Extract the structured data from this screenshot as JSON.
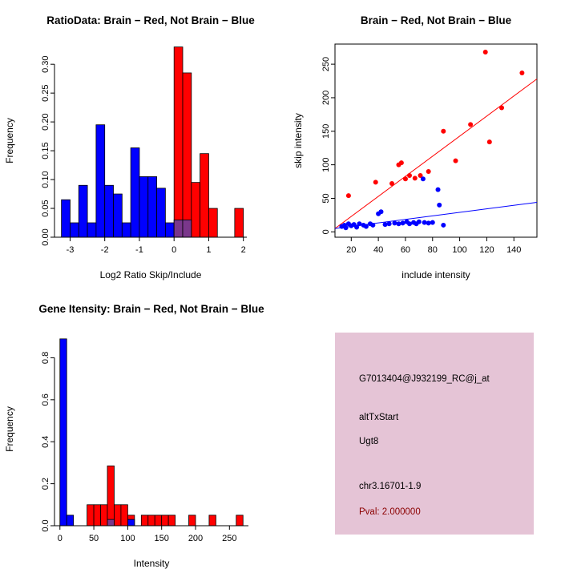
{
  "page": {
    "background": "#FFFFFF"
  },
  "chart_data": [
    {
      "id": "ratio-hist",
      "type": "bar",
      "title": "RatioData: Brain − Red, Not Brain − Blue",
      "xlabel": "Log2 Ratio Skip/Include",
      "ylabel": "Frequency",
      "xlim": [
        -3.45,
        2.1
      ],
      "ylim": [
        0,
        0.335
      ],
      "xticks": [
        -3,
        -2,
        -1,
        0,
        1,
        2
      ],
      "xtick_labels": [
        "-3",
        "-2",
        "-1",
        "0",
        "1",
        "2"
      ],
      "yticks": [
        0,
        0.05,
        0.1,
        0.15,
        0.2,
        0.25,
        0.3
      ],
      "ytick_labels": [
        "0.00",
        "0.05",
        "0.10",
        "0.15",
        "0.20",
        "0.25",
        "0.30"
      ],
      "bin_width": 0.25,
      "margin": {
        "l": 68,
        "r": 52,
        "t": 55,
        "b": 64
      },
      "grid": false,
      "legend": "none (color meaning in title)",
      "series": [
        {
          "name": "not-brain-blue",
          "color": "#0000FF",
          "bins": [
            [
              -3.25,
              0.065
            ],
            [
              -3.0,
              0.025
            ],
            [
              -2.75,
              0.09
            ],
            [
              -2.5,
              0.025
            ],
            [
              -2.25,
              0.195
            ],
            [
              -2.0,
              0.09
            ],
            [
              -1.75,
              0.075
            ],
            [
              -1.5,
              0.025
            ],
            [
              -1.25,
              0.155
            ],
            [
              -1.0,
              0.105
            ],
            [
              -0.75,
              0.105
            ],
            [
              -0.5,
              0.085
            ],
            [
              -0.25,
              0.025
            ]
          ]
        },
        {
          "name": "brain-red",
          "color": "#FF0000",
          "bins": [
            [
              0.0,
              0.33
            ],
            [
              0.25,
              0.285
            ],
            [
              0.5,
              0.095
            ],
            [
              0.75,
              0.145
            ],
            [
              1.0,
              0.05
            ],
            [
              1.75,
              0.05
            ]
          ]
        },
        {
          "name": "overlap-purple",
          "color": "#7A378B",
          "bins": [
            [
              0.0,
              0.03
            ],
            [
              0.25,
              0.03
            ]
          ]
        }
      ]
    },
    {
      "id": "intensity-scatter",
      "type": "scatter",
      "title": "Brain − Red, Not Brain − Blue",
      "xlabel": "include intensity",
      "ylabel": "skip intensity",
      "xlim": [
        8,
        157
      ],
      "ylim": [
        -8,
        280
      ],
      "xticks": [
        20,
        40,
        60,
        80,
        100,
        120,
        140
      ],
      "xtick_labels": [
        "20",
        "40",
        "60",
        "80",
        "100",
        "120",
        "140"
      ],
      "yticks": [
        0,
        50,
        100,
        150,
        200,
        250
      ],
      "ytick_labels": [
        "0",
        "50",
        "100",
        "150",
        "200",
        "250"
      ],
      "margin": {
        "l": 58,
        "r": 50,
        "t": 55,
        "b": 64
      },
      "grid": false,
      "legend": "none (color meaning in title)",
      "series": [
        {
          "name": "brain-red",
          "color": "#FF0000",
          "points": [
            [
              18,
              54
            ],
            [
              38,
              74
            ],
            [
              50,
              72
            ],
            [
              55,
              100
            ],
            [
              57,
              103
            ],
            [
              60,
              79
            ],
            [
              63,
              84
            ],
            [
              67,
              80
            ],
            [
              71,
              84
            ],
            [
              77,
              90
            ],
            [
              88,
              150
            ],
            [
              97,
              106
            ],
            [
              108,
              160
            ],
            [
              119,
              268
            ],
            [
              122,
              134
            ],
            [
              131,
              185
            ],
            [
              146,
              237
            ]
          ],
          "line": [
            8,
            5,
            157,
            228
          ]
        },
        {
          "name": "not-brain-blue",
          "color": "#0000FF",
          "points": [
            [
              13,
              8
            ],
            [
              15,
              10
            ],
            [
              16,
              6
            ],
            [
              18,
              12
            ],
            [
              20,
              9
            ],
            [
              22,
              11
            ],
            [
              24,
              7
            ],
            [
              26,
              12
            ],
            [
              29,
              10
            ],
            [
              31,
              8
            ],
            [
              34,
              12
            ],
            [
              36,
              10
            ],
            [
              40,
              27
            ],
            [
              42,
              30
            ],
            [
              45,
              11
            ],
            [
              48,
              12
            ],
            [
              52,
              13
            ],
            [
              55,
              12
            ],
            [
              58,
              13
            ],
            [
              61,
              15
            ],
            [
              63,
              12
            ],
            [
              66,
              14
            ],
            [
              68,
              12
            ],
            [
              70,
              15
            ],
            [
              73,
              79
            ],
            [
              74,
              14
            ],
            [
              77,
              13
            ],
            [
              80,
              14
            ],
            [
              84,
              63
            ],
            [
              85,
              40
            ],
            [
              88,
              10
            ]
          ],
          "line": [
            8,
            5,
            157,
            44
          ]
        }
      ]
    },
    {
      "id": "gene-hist",
      "type": "bar",
      "title": "Gene Itensity: Brain − Red, Not Brain − Blue",
      "xlabel": "Intensity",
      "ylabel": "Frequency",
      "xlim": [
        -8,
        278
      ],
      "ylim": [
        0,
        0.92
      ],
      "xticks": [
        0,
        50,
        100,
        150,
        200,
        250
      ],
      "xtick_labels": [
        "0",
        "50",
        "100",
        "150",
        "200",
        "250"
      ],
      "yticks": [
        0,
        0.2,
        0.4,
        0.6,
        0.8
      ],
      "ytick_labels": [
        "0.0",
        "0.2",
        "0.4",
        "0.6",
        "0.8"
      ],
      "bin_width": 10,
      "margin": {
        "l": 68,
        "r": 50,
        "t": 55,
        "b": 64
      },
      "grid": false,
      "legend": "none (color meaning in title)",
      "series": [
        {
          "name": "brain-red",
          "color": "#FF0000",
          "bins": [
            [
              40,
              0.1
            ],
            [
              50,
              0.1
            ],
            [
              60,
              0.1
            ],
            [
              70,
              0.285
            ],
            [
              80,
              0.1
            ],
            [
              90,
              0.1
            ],
            [
              100,
              0.05
            ],
            [
              120,
              0.05
            ],
            [
              130,
              0.05
            ],
            [
              140,
              0.05
            ],
            [
              150,
              0.05
            ],
            [
              160,
              0.05
            ],
            [
              190,
              0.05
            ],
            [
              220,
              0.05
            ],
            [
              260,
              0.05
            ]
          ]
        },
        {
          "name": "not-brain-blue",
          "color": "#0000FF",
          "bins": [
            [
              0,
              0.89
            ],
            [
              10,
              0.05
            ],
            [
              100,
              0.03
            ]
          ]
        },
        {
          "name": "overlap-purple",
          "color": "#7A378B",
          "bins": [
            [
              70,
              0.03
            ]
          ]
        }
      ]
    }
  ],
  "info_panel": {
    "background": "#E5C4D6",
    "pval_color": "#8B0000",
    "lines": [
      "G7013404@J932199_RC@j_at",
      "altTxStart",
      "Ugt8",
      "chr3.16701-1.9",
      "Pval: 2.000000"
    ]
  }
}
